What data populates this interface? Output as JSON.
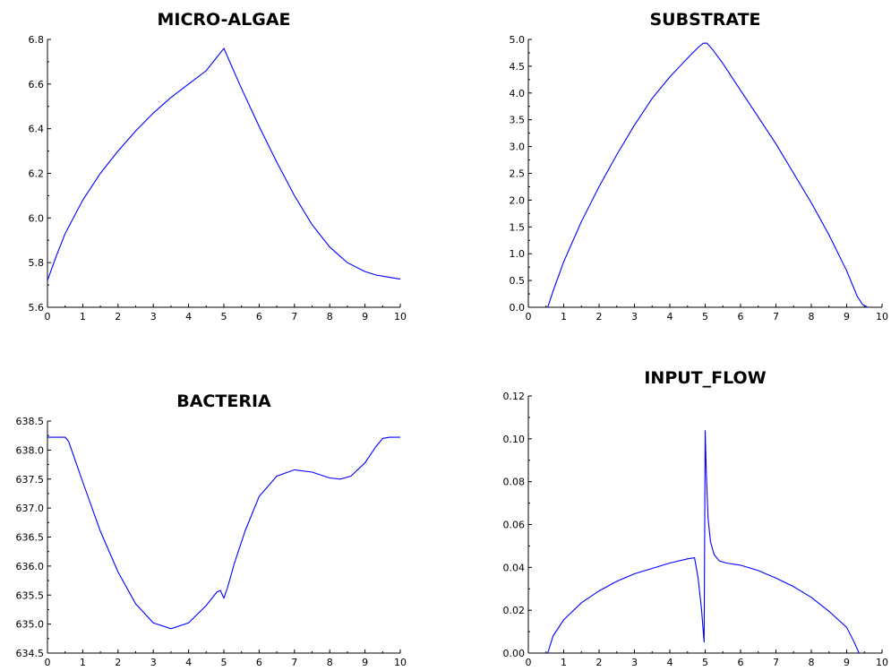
{
  "chart_data": [
    {
      "type": "line",
      "title": "MICRO-ALGAE",
      "xlim": [
        0,
        10
      ],
      "ylim": [
        5.6,
        6.8
      ],
      "xticks": [
        "0",
        "1",
        "2",
        "3",
        "4",
        "5",
        "6",
        "7",
        "8",
        "9",
        "10"
      ],
      "yticks": [
        "5.6",
        "5.8",
        "6.0",
        "6.2",
        "6.4",
        "6.6",
        "6.8"
      ],
      "series": [
        {
          "color": "#0000ff",
          "x": [
            0,
            0.25,
            0.5,
            1,
            1.5,
            2,
            2.5,
            3,
            3.5,
            4,
            4.5,
            5,
            5.5,
            6,
            6.5,
            7,
            7.5,
            8,
            8.5,
            9,
            9.3,
            9.6,
            10
          ],
          "y": [
            5.72,
            5.83,
            5.93,
            6.08,
            6.2,
            6.3,
            6.39,
            6.47,
            6.54,
            6.6,
            6.66,
            6.76,
            6.58,
            6.41,
            6.25,
            6.1,
            5.97,
            5.87,
            5.8,
            5.76,
            5.745,
            5.737,
            5.726
          ]
        }
      ]
    },
    {
      "type": "line",
      "title": "SUBSTRATE",
      "xlim": [
        0,
        10
      ],
      "ylim": [
        0,
        5.0
      ],
      "xticks": [
        "0",
        "1",
        "2",
        "3",
        "4",
        "5",
        "6",
        "7",
        "8",
        "9",
        "10"
      ],
      "yticks": [
        "0.0",
        "0.5",
        "1.0",
        "1.5",
        "2.0",
        "2.5",
        "3.0",
        "3.5",
        "4.0",
        "4.5",
        "5.0"
      ],
      "series": [
        {
          "color": "#0000ff",
          "x": [
            0.55,
            0.7,
            1,
            1.5,
            2,
            2.5,
            3,
            3.5,
            4,
            4.5,
            4.8,
            4.95,
            5.05,
            5.2,
            5.5,
            6,
            6.5,
            7,
            7.5,
            8,
            8.5,
            9,
            9.3,
            9.45,
            9.6
          ],
          "y": [
            0,
            0.3,
            0.85,
            1.6,
            2.25,
            2.85,
            3.4,
            3.9,
            4.3,
            4.65,
            4.85,
            4.93,
            4.93,
            4.82,
            4.55,
            4.05,
            3.55,
            3.05,
            2.5,
            1.95,
            1.35,
            0.68,
            0.2,
            0.05,
            0
          ]
        }
      ]
    },
    {
      "type": "line",
      "title": "BACTERIA",
      "xlim": [
        0,
        10
      ],
      "ylim": [
        634.5,
        638.5
      ],
      "xticks": [
        "0",
        "1",
        "2",
        "3",
        "4",
        "5",
        "6",
        "7",
        "8",
        "9",
        "10"
      ],
      "yticks": [
        "634.5",
        "635.0",
        "635.5",
        "636.0",
        "636.5",
        "637.0",
        "637.5",
        "638.0",
        "638.5"
      ],
      "series": [
        {
          "color": "#0000ff",
          "x": [
            0,
            0.5,
            0.6,
            1,
            1.5,
            2,
            2.5,
            3,
            3.5,
            4,
            4.5,
            4.8,
            4.9,
            5.0,
            5.1,
            5.3,
            5.6,
            6,
            6.5,
            7,
            7.5,
            8,
            8.3,
            8.6,
            9,
            9.3,
            9.5,
            9.7,
            10
          ],
          "y": [
            638.22,
            638.22,
            638.15,
            637.45,
            636.6,
            635.9,
            635.35,
            635.02,
            634.92,
            635.02,
            635.32,
            635.55,
            635.58,
            635.45,
            635.62,
            636.05,
            636.6,
            637.2,
            637.55,
            637.66,
            637.62,
            637.52,
            637.5,
            637.55,
            637.78,
            638.05,
            638.2,
            638.22,
            638.22
          ]
        }
      ]
    },
    {
      "type": "line",
      "title": "INPUT_FLOW",
      "xlim": [
        0,
        10
      ],
      "ylim": [
        0,
        0.12
      ],
      "xticks": [
        "0",
        "1",
        "2",
        "3",
        "4",
        "5",
        "6",
        "7",
        "8",
        "9",
        "10"
      ],
      "yticks": [
        "0.00",
        "0.02",
        "0.04",
        "0.06",
        "0.08",
        "0.10",
        "0.12"
      ],
      "series": [
        {
          "color": "#0000ff",
          "x": [
            0.55,
            0.7,
            1,
            1.5,
            2,
            2.5,
            3,
            3.5,
            4,
            4.5,
            4.7,
            4.8,
            4.9,
            4.97,
            5.0,
            5.03,
            5.08,
            5.15,
            5.25,
            5.4,
            5.6,
            6,
            6.5,
            7,
            7.5,
            8,
            8.5,
            9,
            9.2,
            9.35
          ],
          "y": [
            0,
            0.008,
            0.0155,
            0.0235,
            0.029,
            0.0335,
            0.037,
            0.0395,
            0.042,
            0.044,
            0.0445,
            0.035,
            0.02,
            0.005,
            0.104,
            0.085,
            0.063,
            0.052,
            0.046,
            0.043,
            0.042,
            0.041,
            0.0385,
            0.035,
            0.031,
            0.026,
            0.0195,
            0.012,
            0.0055,
            0
          ]
        }
      ]
    }
  ]
}
